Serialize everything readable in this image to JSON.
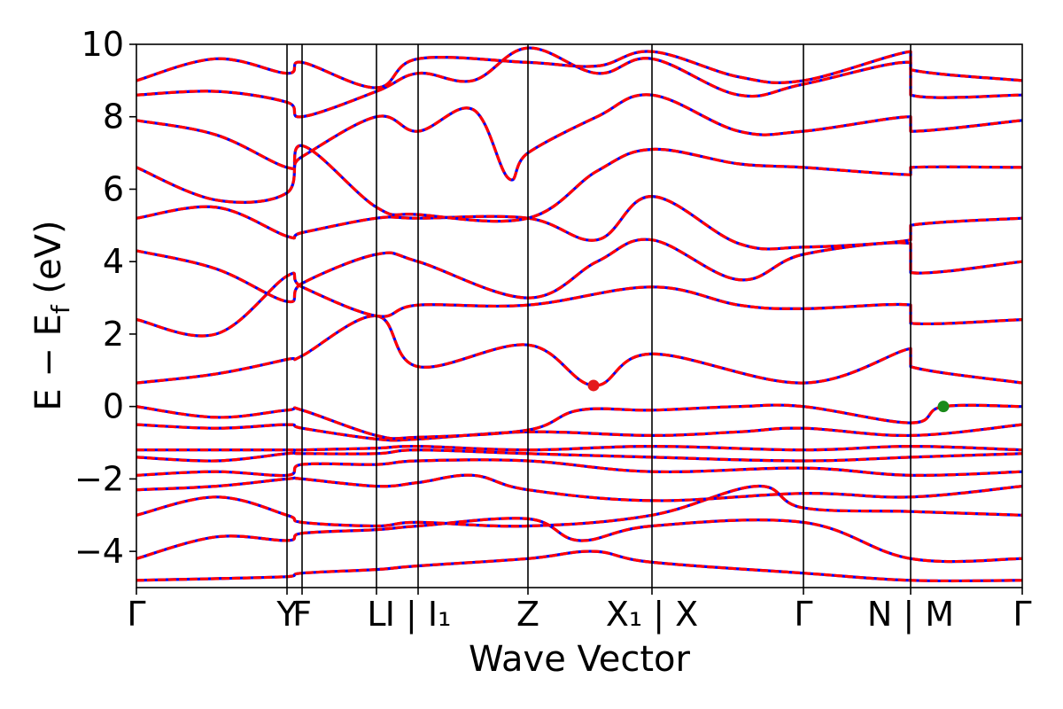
{
  "chart_data": {
    "type": "line",
    "title": "",
    "xlabel": "Wave Vector",
    "ylabel": "E − E_f (eV)",
    "ylabel_parts": {
      "main": "E − E",
      "sub": "f",
      "unit": "(eV)"
    },
    "ylim": [
      -5,
      10
    ],
    "yticks": [
      -4,
      -2,
      0,
      2,
      4,
      6,
      8,
      10
    ],
    "ytick_labels": [
      "−4",
      "−2",
      "0",
      "2",
      "4",
      "6",
      "8",
      "10"
    ],
    "xlim": [
      0,
      1
    ],
    "grid": false,
    "legend": "none",
    "high_symmetry_points": [
      {
        "x": 0.0,
        "label": "Γ"
      },
      {
        "x": 0.17,
        "label": "Y"
      },
      {
        "x": 0.187,
        "label": "F"
      },
      {
        "x": 0.271,
        "label": "L"
      },
      {
        "x": 0.318,
        "label": "I | I₁"
      },
      {
        "x": 0.442,
        "label": "Z"
      },
      {
        "x": 0.582,
        "label": "X₁ | X"
      },
      {
        "x": 0.753,
        "label": "Γ"
      },
      {
        "x": 0.874,
        "label": "N | M"
      },
      {
        "x": 1.0,
        "label": "Γ"
      }
    ],
    "band_style": {
      "reference": {
        "color": "#0000ff",
        "dash": "solid"
      },
      "overlay": {
        "color": "#ff0000",
        "dash": "dashed"
      }
    },
    "markers": [
      {
        "name": "CBM",
        "x": 0.516,
        "y": 0.58,
        "color": "#e41a1c"
      },
      {
        "name": "VBM",
        "x": 0.911,
        "y": 0.0,
        "color": "#1a8a1a"
      }
    ],
    "series": [
      {
        "values": [
          [
            0,
            -4.8
          ],
          [
            0.17,
            -4.7
          ],
          [
            0.187,
            -4.6
          ],
          [
            0.271,
            -4.5
          ],
          [
            0.318,
            -4.4
          ],
          [
            0.442,
            -4.2
          ],
          [
            0.516,
            -4.0
          ],
          [
            0.582,
            -4.3
          ],
          [
            0.753,
            -4.6
          ],
          [
            0.874,
            -4.8
          ],
          [
            1.0,
            -4.8
          ]
        ]
      },
      {
        "values": [
          [
            0,
            -4.2
          ],
          [
            0.09,
            -3.6
          ],
          [
            0.17,
            -3.7
          ],
          [
            0.187,
            -3.5
          ],
          [
            0.271,
            -3.4
          ],
          [
            0.318,
            -3.3
          ],
          [
            0.442,
            -3.1
          ],
          [
            0.5,
            -3.7
          ],
          [
            0.582,
            -3.3
          ],
          [
            0.753,
            -3.2
          ],
          [
            0.874,
            -4.2
          ],
          [
            1.0,
            -4.2
          ]
        ]
      },
      {
        "values": [
          [
            0,
            -3.0
          ],
          [
            0.09,
            -2.5
          ],
          [
            0.17,
            -3.0
          ],
          [
            0.187,
            -3.2
          ],
          [
            0.271,
            -3.3
          ],
          [
            0.318,
            -3.2
          ],
          [
            0.442,
            -3.3
          ],
          [
            0.582,
            -3.0
          ],
          [
            0.7,
            -2.2
          ],
          [
            0.753,
            -2.8
          ],
          [
            0.874,
            -2.9
          ],
          [
            1.0,
            -3.0
          ]
        ]
      },
      {
        "values": [
          [
            0,
            -2.3
          ],
          [
            0.09,
            -2.2
          ],
          [
            0.17,
            -2.0
          ],
          [
            0.187,
            -2.0
          ],
          [
            0.271,
            -2.2
          ],
          [
            0.318,
            -2.1
          ],
          [
            0.38,
            -1.9
          ],
          [
            0.442,
            -2.3
          ],
          [
            0.582,
            -2.6
          ],
          [
            0.753,
            -2.4
          ],
          [
            0.874,
            -2.5
          ],
          [
            1.0,
            -2.2
          ]
        ]
      },
      {
        "values": [
          [
            0,
            -1.9
          ],
          [
            0.09,
            -1.8
          ],
          [
            0.17,
            -1.9
          ],
          [
            0.187,
            -1.6
          ],
          [
            0.271,
            -1.6
          ],
          [
            0.318,
            -1.5
          ],
          [
            0.442,
            -1.5
          ],
          [
            0.582,
            -1.8
          ],
          [
            0.753,
            -1.7
          ],
          [
            0.874,
            -1.9
          ],
          [
            1.0,
            -1.8
          ]
        ]
      },
      {
        "values": [
          [
            0,
            -1.4
          ],
          [
            0.09,
            -1.5
          ],
          [
            0.17,
            -1.3
          ],
          [
            0.187,
            -1.3
          ],
          [
            0.271,
            -1.3
          ],
          [
            0.318,
            -1.2
          ],
          [
            0.442,
            -1.3
          ],
          [
            0.582,
            -1.4
          ],
          [
            0.753,
            -1.5
          ],
          [
            0.874,
            -1.4
          ],
          [
            1.0,
            -1.3
          ]
        ]
      },
      {
        "values": [
          [
            0,
            -1.2
          ],
          [
            0.09,
            -1.2
          ],
          [
            0.17,
            -1.2
          ],
          [
            0.187,
            -1.2
          ],
          [
            0.271,
            -1.15
          ],
          [
            0.318,
            -1.1
          ],
          [
            0.442,
            -1.2
          ],
          [
            0.582,
            -1.1
          ],
          [
            0.753,
            -1.2
          ],
          [
            0.874,
            -1.1
          ],
          [
            1.0,
            -1.2
          ]
        ]
      },
      {
        "values": [
          [
            0,
            -0.5
          ],
          [
            0.09,
            -0.6
          ],
          [
            0.17,
            -0.5
          ],
          [
            0.187,
            -0.6
          ],
          [
            0.271,
            -0.9
          ],
          [
            0.318,
            -0.9
          ],
          [
            0.442,
            -0.7
          ],
          [
            0.582,
            -0.8
          ],
          [
            0.68,
            -0.7
          ],
          [
            0.753,
            -0.6
          ],
          [
            0.874,
            -0.8
          ],
          [
            1.0,
            -0.5
          ]
        ]
      },
      {
        "values": [
          [
            0,
            0.0
          ],
          [
            0.09,
            -0.3
          ],
          [
            0.17,
            -0.1
          ],
          [
            0.187,
            -0.1
          ],
          [
            0.271,
            -0.8
          ],
          [
            0.318,
            -0.85
          ],
          [
            0.442,
            -0.65
          ],
          [
            0.5,
            -0.1
          ],
          [
            0.582,
            -0.1
          ],
          [
            0.68,
            0.0
          ],
          [
            0.753,
            0.0
          ],
          [
            0.874,
            -0.45
          ],
          [
            0.911,
            0.0
          ],
          [
            1.0,
            0.0
          ]
        ]
      },
      {
        "values": [
          [
            0,
            0.65
          ],
          [
            0.09,
            0.9
          ],
          [
            0.17,
            1.3
          ],
          [
            0.187,
            1.4
          ],
          [
            0.271,
            2.5
          ],
          [
            0.318,
            1.1
          ],
          [
            0.442,
            1.7
          ],
          [
            0.516,
            0.58
          ],
          [
            0.582,
            1.45
          ],
          [
            0.753,
            0.65
          ],
          [
            0.874,
            1.6
          ],
          [
            0.874,
            1.1
          ],
          [
            1.0,
            0.65
          ]
        ]
      },
      {
        "values": [
          [
            0,
            2.4
          ],
          [
            0.09,
            2.0
          ],
          [
            0.17,
            3.6
          ],
          [
            0.187,
            3.3
          ],
          [
            0.271,
            2.5
          ],
          [
            0.318,
            2.8
          ],
          [
            0.442,
            2.8
          ],
          [
            0.582,
            3.3
          ],
          [
            0.68,
            2.8
          ],
          [
            0.753,
            2.7
          ],
          [
            0.874,
            2.8
          ],
          [
            0.874,
            2.3
          ],
          [
            1.0,
            2.4
          ]
        ]
      },
      {
        "values": [
          [
            0,
            4.3
          ],
          [
            0.09,
            3.8
          ],
          [
            0.17,
            2.9
          ],
          [
            0.187,
            3.4
          ],
          [
            0.271,
            4.2
          ],
          [
            0.318,
            4.0
          ],
          [
            0.442,
            3.0
          ],
          [
            0.52,
            4.0
          ],
          [
            0.582,
            4.6
          ],
          [
            0.68,
            3.5
          ],
          [
            0.753,
            4.2
          ],
          [
            0.874,
            4.5
          ],
          [
            0.874,
            3.7
          ],
          [
            1.0,
            4.0
          ]
        ]
      },
      {
        "values": [
          [
            0,
            5.2
          ],
          [
            0.09,
            5.5
          ],
          [
            0.17,
            4.7
          ],
          [
            0.187,
            4.8
          ],
          [
            0.271,
            5.2
          ],
          [
            0.318,
            5.2
          ],
          [
            0.442,
            5.2
          ],
          [
            0.52,
            4.6
          ],
          [
            0.582,
            5.8
          ],
          [
            0.68,
            4.5
          ],
          [
            0.753,
            4.4
          ],
          [
            0.874,
            4.6
          ],
          [
            0.874,
            5.0
          ],
          [
            1.0,
            5.2
          ]
        ]
      },
      {
        "values": [
          [
            0,
            6.6
          ],
          [
            0.09,
            5.7
          ],
          [
            0.17,
            5.9
          ],
          [
            0.187,
            7.2
          ],
          [
            0.271,
            5.5
          ],
          [
            0.318,
            5.3
          ],
          [
            0.442,
            5.2
          ],
          [
            0.52,
            6.5
          ],
          [
            0.582,
            7.1
          ],
          [
            0.68,
            6.7
          ],
          [
            0.753,
            6.6
          ],
          [
            0.874,
            6.4
          ],
          [
            0.874,
            6.6
          ],
          [
            1.0,
            6.6
          ]
        ]
      },
      {
        "values": [
          [
            0,
            7.9
          ],
          [
            0.09,
            7.5
          ],
          [
            0.17,
            6.6
          ],
          [
            0.187,
            6.9
          ],
          [
            0.271,
            8.0
          ],
          [
            0.318,
            7.6
          ],
          [
            0.38,
            8.2
          ],
          [
            0.42,
            6.3
          ],
          [
            0.442,
            7.0
          ],
          [
            0.52,
            8.0
          ],
          [
            0.582,
            8.6
          ],
          [
            0.68,
            7.6
          ],
          [
            0.753,
            7.6
          ],
          [
            0.874,
            8.0
          ],
          [
            0.874,
            7.6
          ],
          [
            1.0,
            7.9
          ]
        ]
      },
      {
        "values": [
          [
            0,
            8.6
          ],
          [
            0.09,
            8.7
          ],
          [
            0.17,
            8.4
          ],
          [
            0.187,
            8.0
          ],
          [
            0.271,
            8.7
          ],
          [
            0.318,
            9.2
          ],
          [
            0.38,
            9.0
          ],
          [
            0.442,
            9.9
          ],
          [
            0.52,
            9.2
          ],
          [
            0.582,
            9.6
          ],
          [
            0.68,
            8.6
          ],
          [
            0.753,
            8.9
          ],
          [
            0.874,
            9.5
          ],
          [
            0.874,
            8.6
          ],
          [
            1.0,
            8.6
          ]
        ]
      },
      {
        "values": [
          [
            0,
            9.0
          ],
          [
            0.09,
            9.6
          ],
          [
            0.17,
            9.2
          ],
          [
            0.187,
            9.5
          ],
          [
            0.271,
            8.8
          ],
          [
            0.318,
            9.6
          ],
          [
            0.442,
            9.5
          ],
          [
            0.52,
            9.4
          ],
          [
            0.582,
            9.8
          ],
          [
            0.68,
            9.1
          ],
          [
            0.753,
            9.0
          ],
          [
            0.874,
            9.8
          ],
          [
            0.874,
            9.3
          ],
          [
            1.0,
            9.0
          ]
        ]
      }
    ]
  }
}
